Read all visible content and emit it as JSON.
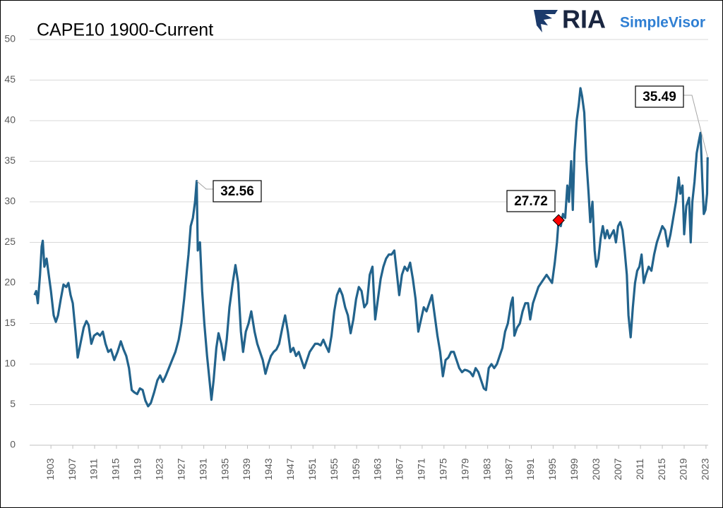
{
  "logo": {
    "brand": "RIA",
    "product": "SimpleVisor"
  },
  "chart_data": {
    "type": "line",
    "title": "CAPE10 1900-Current",
    "x": [
      1900.0,
      1900.3,
      1900.6,
      1901.0,
      1901.3,
      1901.5,
      1901.8,
      1902.2,
      1902.6,
      1903.0,
      1903.5,
      1903.9,
      1904.3,
      1904.8,
      1905.3,
      1905.8,
      1906.2,
      1906.6,
      1907.0,
      1907.5,
      1907.9,
      1908.4,
      1909.0,
      1909.5,
      1909.9,
      1910.4,
      1910.9,
      1911.5,
      1912.0,
      1912.5,
      1913.0,
      1913.5,
      1914.0,
      1914.6,
      1915.2,
      1915.8,
      1916.3,
      1916.8,
      1917.3,
      1917.8,
      1918.3,
      1918.8,
      1919.3,
      1919.8,
      1920.3,
      1920.8,
      1921.3,
      1921.9,
      1922.5,
      1923.0,
      1923.5,
      1924.0,
      1924.6,
      1925.2,
      1925.8,
      1926.4,
      1926.9,
      1927.4,
      1927.9,
      1928.2,
      1928.6,
      1929.0,
      1929.4,
      1929.7,
      1929.9,
      1930.3,
      1930.7,
      1931.1,
      1931.6,
      1931.9,
      1932.4,
      1932.8,
      1933.3,
      1933.7,
      1934.2,
      1934.7,
      1935.2,
      1935.7,
      1936.3,
      1936.8,
      1937.3,
      1937.8,
      1938.2,
      1938.7,
      1939.2,
      1939.7,
      1940.3,
      1940.8,
      1941.3,
      1941.8,
      1942.3,
      1942.8,
      1943.3,
      1943.8,
      1944.3,
      1944.8,
      1945.4,
      1945.9,
      1946.4,
      1946.9,
      1947.4,
      1947.9,
      1948.4,
      1948.9,
      1949.4,
      1949.9,
      1950.4,
      1950.9,
      1951.4,
      1951.9,
      1952.4,
      1952.9,
      1953.4,
      1953.9,
      1954.4,
      1954.9,
      1955.4,
      1955.9,
      1956.4,
      1956.9,
      1957.4,
      1957.9,
      1958.4,
      1958.9,
      1959.4,
      1959.9,
      1960.4,
      1960.9,
      1961.4,
      1961.9,
      1962.4,
      1962.9,
      1963.4,
      1963.9,
      1964.4,
      1964.9,
      1965.4,
      1965.9,
      1966.4,
      1966.8,
      1967.3,
      1967.8,
      1968.3,
      1968.8,
      1969.3,
      1969.8,
      1970.3,
      1970.8,
      1971.3,
      1971.8,
      1972.3,
      1972.8,
      1973.3,
      1973.8,
      1974.3,
      1974.8,
      1975.3,
      1975.8,
      1976.3,
      1976.8,
      1977.3,
      1977.8,
      1978.3,
      1978.8,
      1979.3,
      1979.8,
      1980.3,
      1980.8,
      1981.3,
      1981.8,
      1982.3,
      1982.7,
      1983.2,
      1983.7,
      1984.2,
      1984.7,
      1985.2,
      1985.7,
      1986.2,
      1986.7,
      1987.3,
      1987.6,
      1987.9,
      1988.4,
      1988.9,
      1989.4,
      1989.9,
      1990.4,
      1990.8,
      1991.3,
      1991.8,
      1992.3,
      1992.8,
      1993.3,
      1993.8,
      1994.3,
      1994.8,
      1995.3,
      1995.7,
      1996.0,
      1996.4,
      1996.8,
      1997.2,
      1997.6,
      1997.9,
      1998.3,
      1998.6,
      1998.9,
      1999.3,
      1999.7,
      2000.0,
      2000.3,
      2000.7,
      2001.1,
      2001.5,
      2001.8,
      2002.2,
      2002.6,
      2002.9,
      2003.3,
      2003.7,
      2004.1,
      2004.5,
      2004.9,
      2005.3,
      2005.7,
      2006.1,
      2006.5,
      2006.9,
      2007.3,
      2007.7,
      2008.1,
      2008.5,
      2008.8,
      2009.2,
      2009.6,
      2010.0,
      2010.4,
      2010.8,
      2011.2,
      2011.6,
      2012.0,
      2012.5,
      2013.0,
      2013.5,
      2014.0,
      2014.5,
      2015.0,
      2015.5,
      2016.0,
      2016.5,
      2017.0,
      2017.5,
      2018.0,
      2018.3,
      2018.7,
      2019.0,
      2019.4,
      2019.9,
      2020.2,
      2020.5,
      2020.9,
      2021.3,
      2021.7,
      2022.0,
      2022.3,
      2022.6,
      2022.9,
      2023.2,
      2023.3
    ],
    "series": [
      {
        "name": "CAPE10",
        "color": "#22638c",
        "values": [
          18.5,
          19,
          17.5,
          21,
          24.5,
          25.2,
          22,
          23,
          21,
          19,
          16,
          15.2,
          16,
          18,
          19.8,
          19.5,
          20,
          18.5,
          17.5,
          14,
          10.8,
          12.5,
          14.5,
          15.3,
          14.8,
          12.5,
          13.5,
          13.8,
          13.5,
          14,
          12.5,
          11.5,
          11.8,
          10.5,
          11.5,
          12.8,
          11.8,
          11,
          9.5,
          6.8,
          6.5,
          6.3,
          7,
          6.8,
          5.5,
          4.8,
          5.2,
          6.5,
          8,
          8.6,
          7.8,
          8.5,
          9.5,
          10.5,
          11.5,
          13,
          15,
          18,
          21.5,
          23.5,
          27,
          28,
          30,
          32.56,
          24,
          25,
          19,
          15,
          11,
          9,
          5.6,
          8,
          12,
          13.8,
          12.5,
          10.5,
          13,
          17,
          20,
          22.2,
          20,
          14,
          11.5,
          14,
          15,
          16.5,
          14,
          12.5,
          11.5,
          10.5,
          8.8,
          10,
          11,
          11.5,
          11.8,
          12.5,
          14.5,
          16,
          14,
          11.5,
          12,
          11,
          11.5,
          10.5,
          9.5,
          10.5,
          11.5,
          12,
          12.5,
          12.5,
          12.3,
          13,
          12.2,
          11.5,
          13.5,
          16.5,
          18.5,
          19.3,
          18.5,
          17,
          16,
          13.8,
          15.5,
          18,
          19.5,
          19,
          17,
          17.5,
          21,
          22,
          15.5,
          18,
          20.5,
          22,
          23,
          23.5,
          23.5,
          24,
          21,
          18.5,
          21,
          22,
          21.5,
          22.5,
          20.5,
          18,
          14,
          15.5,
          17,
          16.5,
          17.5,
          18.5,
          16,
          13.5,
          11.5,
          8.5,
          10.5,
          10.8,
          11.5,
          11.5,
          10.5,
          9.5,
          9,
          9.3,
          9.2,
          9,
          8.5,
          9.5,
          9,
          8,
          7,
          6.8,
          9.5,
          10,
          9.5,
          10,
          11,
          12,
          14,
          15,
          17.5,
          18.2,
          13.5,
          14.5,
          15,
          16.5,
          17.5,
          17.5,
          15.5,
          17.5,
          18.5,
          19.5,
          20,
          20.5,
          21,
          20.5,
          20,
          22.5,
          25,
          27.72,
          27,
          28.5,
          28,
          32,
          30,
          35,
          29,
          36,
          40,
          42,
          44,
          43,
          41,
          35,
          31,
          27.5,
          30,
          24,
          22,
          23,
          25.5,
          27,
          25.5,
          26.5,
          25.5,
          26,
          26.5,
          25,
          27,
          27.5,
          26.5,
          24,
          21,
          16,
          13.3,
          17,
          20,
          21.5,
          22,
          23.5,
          20,
          21,
          22,
          21.5,
          23.5,
          25,
          26,
          27,
          26.5,
          24.5,
          26,
          28,
          30,
          33,
          31,
          32,
          26,
          29.5,
          30.5,
          25,
          30,
          32.5,
          36,
          37.5,
          38.5,
          33,
          28.5,
          29,
          31,
          35.49
        ]
      }
    ],
    "xlim": [
      1899.1,
      2023.4
    ],
    "ylim": [
      0,
      50
    ],
    "xticks": [
      1903,
      1907,
      1911,
      1915,
      1919,
      1923,
      1927,
      1931,
      1935,
      1939,
      1943,
      1947,
      1951,
      1955,
      1959,
      1963,
      1967,
      1971,
      1975,
      1979,
      1983,
      1987,
      1991,
      1995,
      1999,
      2003,
      2007,
      2011,
      2015,
      2019,
      2023
    ],
    "yticks": [
      0,
      5,
      10,
      15,
      20,
      25,
      30,
      35,
      40,
      45,
      50
    ],
    "grid": true,
    "annotations": [
      {
        "x": 1929.7,
        "value": 32.56
      },
      {
        "x": 1996.0,
        "value": 27.72,
        "marker": "diamond",
        "color": "#ff0000"
      },
      {
        "x": 2023.3,
        "value": 35.49
      }
    ]
  }
}
